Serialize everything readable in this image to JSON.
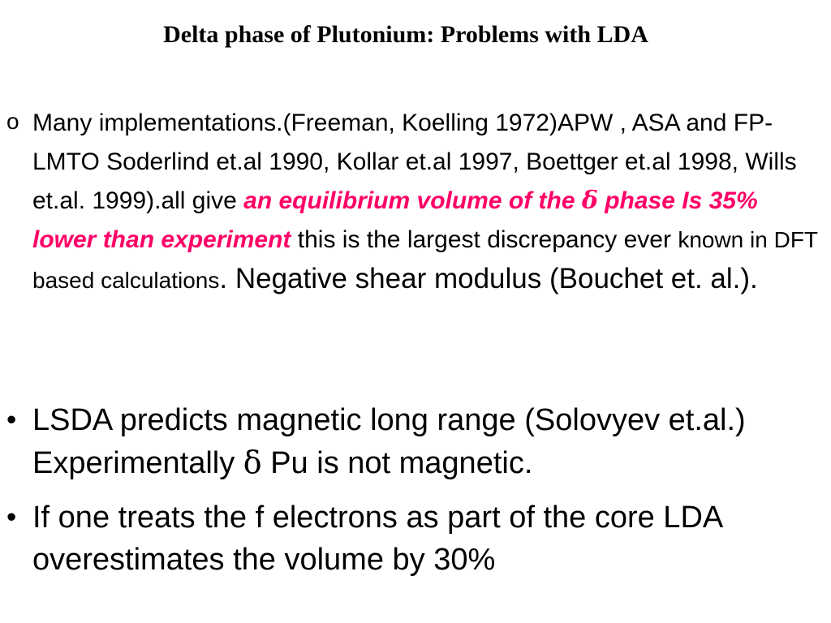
{
  "slide": {
    "title": "Delta phase of Plutonium: Problems with LDA",
    "items": [
      {
        "marker": "o",
        "part1": "Many implementations.(Freeman, Koelling 1972)APW , ASA and FP-LMTO  Soderlind et.al 1990, Kollar et.al 1997, Boettger et.al 1998, Wills et.al. 1999).all give ",
        "emph_a": "an equilibrium volume of the ",
        "emph_symbol": "δ",
        "emph_b": " phase  Is 35% lower than experiment",
        "part2": "  this is the largest discrepancy ever",
        "part3": "known in DFT based calculations",
        "part4": ". Negative shear modulus (Bouchet et. al.)."
      },
      {
        "marker": "•",
        "part1": "LSDA predicts magnetic long range (Solovyev et.al.) Experimentally ",
        "symbol": "δ",
        "part2": " Pu is not magnetic."
      },
      {
        "marker": "•",
        "text": "If one treats the f electrons as part of the core LDA overestimates the volume by 30%"
      }
    ]
  },
  "colors": {
    "emphasis": "#ff0066",
    "text": "#000000",
    "background": "#ffffff"
  }
}
